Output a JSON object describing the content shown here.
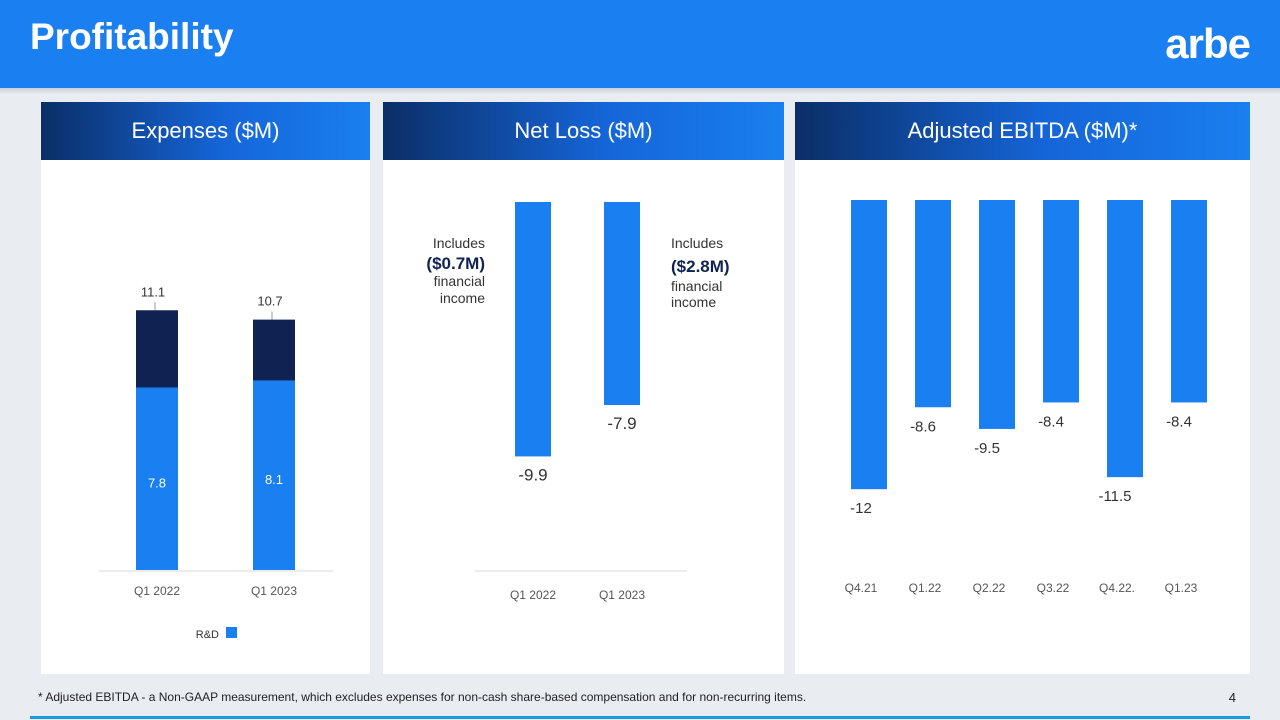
{
  "page": {
    "title": "Profitability",
    "logo_text": "arbe",
    "page_number": "4"
  },
  "footnote": "* Adjusted EBITDA - a Non-GAAP measurement, which excludes expenses for non-cash share-based compensation and for non-recurring items.",
  "colors": {
    "brand_blue": "#1a7ff0",
    "navy": "#0f2252",
    "header_dark": "#0b2e66"
  },
  "chart_data": [
    {
      "type": "bar",
      "title": "Expenses ($M)",
      "categories": [
        "Q1 2022",
        "Q1 2023"
      ],
      "stacked": true,
      "series": [
        {
          "name": "R&D",
          "color": "#1a7ff0",
          "values": [
            7.8,
            8.1
          ]
        },
        {
          "color": "#0f2252",
          "values": [
            3.3,
            2.6
          ]
        }
      ],
      "totals": [
        "11.1",
        "10.7"
      ],
      "segment_labels": [
        "7.8",
        "8.1"
      ],
      "legend": {
        "position": "bottom",
        "label": "R&D"
      }
    },
    {
      "type": "bar",
      "title": "Net Loss ($M)",
      "categories": [
        "Q1 2022",
        "Q1 2023"
      ],
      "values": [
        -9.9,
        -7.9
      ],
      "labels": [
        "-9.9",
        "-7.9"
      ],
      "annotations": [
        {
          "line1": "Includes",
          "line2": "($0.7M)",
          "line3": "financial",
          "line4": "income"
        },
        {
          "line1": "Includes",
          "line2": "($2.8M)",
          "line3": "financial",
          "line4": "income"
        }
      ]
    },
    {
      "type": "bar",
      "title": "Adjusted EBITDA ($M)*",
      "categories": [
        "Q4.21",
        "Q1.22",
        "Q2.22",
        "Q3.22",
        "Q4.22.",
        "Q1.23"
      ],
      "values": [
        -12,
        -8.6,
        -9.5,
        -8.4,
        -11.5,
        -8.4
      ],
      "labels": [
        "-12",
        "-8.6",
        "-9.5",
        "-8.4",
        "-11.5",
        "-8.4"
      ]
    }
  ]
}
